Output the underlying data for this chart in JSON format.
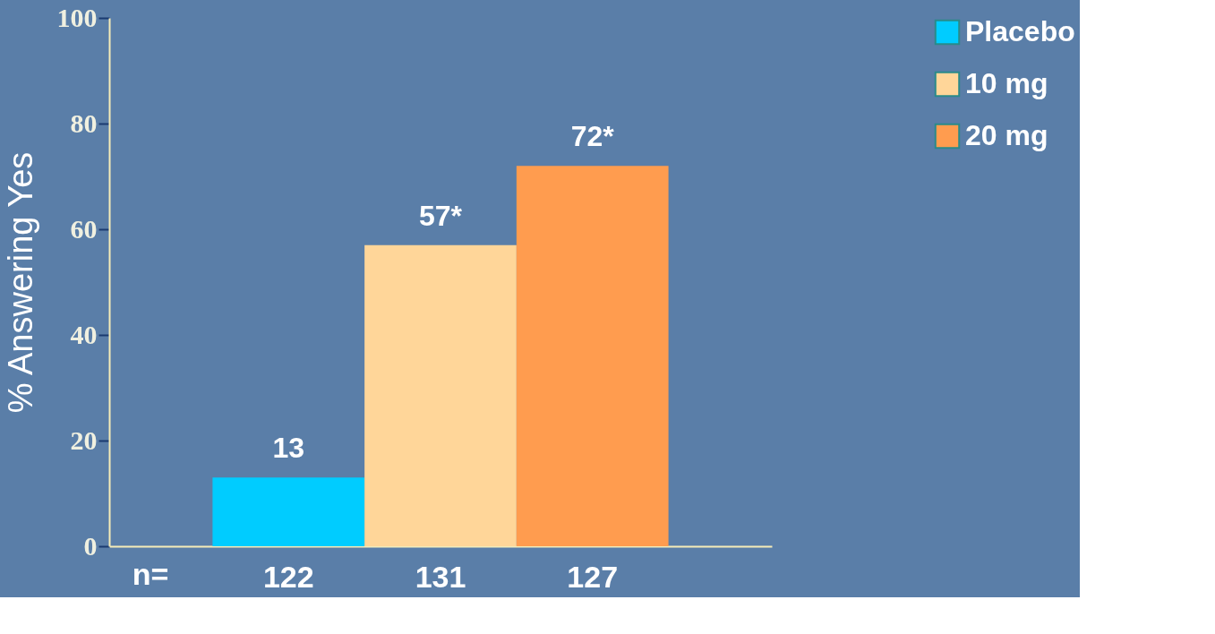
{
  "chart_data": {
    "type": "bar",
    "ylabel": "% Answering Yes",
    "categories": [
      "122",
      "131",
      "127"
    ],
    "series": [
      {
        "name": "Placebo",
        "color": "#00ccff",
        "values": [
          13,
          null,
          null
        ],
        "value_labels": [
          "13",
          null,
          null
        ]
      },
      {
        "name": "10 mg",
        "color": "#ffd699",
        "values": [
          null,
          57,
          null
        ],
        "value_labels": [
          null,
          "57*",
          null
        ]
      },
      {
        "name": "20 mg",
        "color": "#ff9c4f",
        "values": [
          null,
          null,
          72
        ],
        "value_labels": [
          null,
          null,
          "72*"
        ]
      }
    ],
    "ylim": [
      0,
      100
    ],
    "yticks": [
      0,
      20,
      40,
      60,
      80,
      100
    ],
    "grid": false,
    "legend": "right",
    "annotations": [
      "n="
    ]
  }
}
